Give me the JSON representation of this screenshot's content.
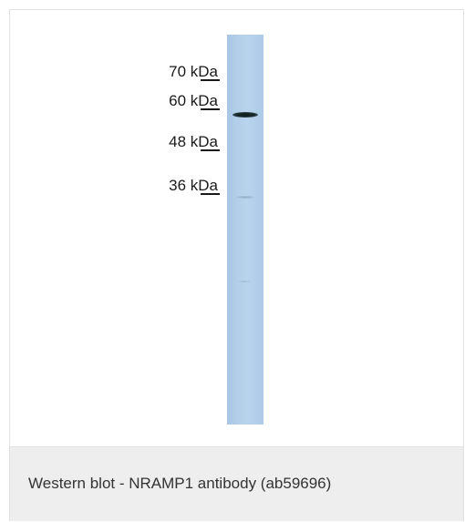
{
  "figure": {
    "markers": [
      {
        "label": "70 kDa"
      },
      {
        "label": "60 kDa"
      },
      {
        "label": "48 kDa"
      },
      {
        "label": "36 kDa"
      }
    ],
    "lane_color": "#b2cee9",
    "band_color": "#1c2d2f"
  },
  "caption": {
    "text": "Western blot - NRAMP1 antibody (ab59696)"
  }
}
